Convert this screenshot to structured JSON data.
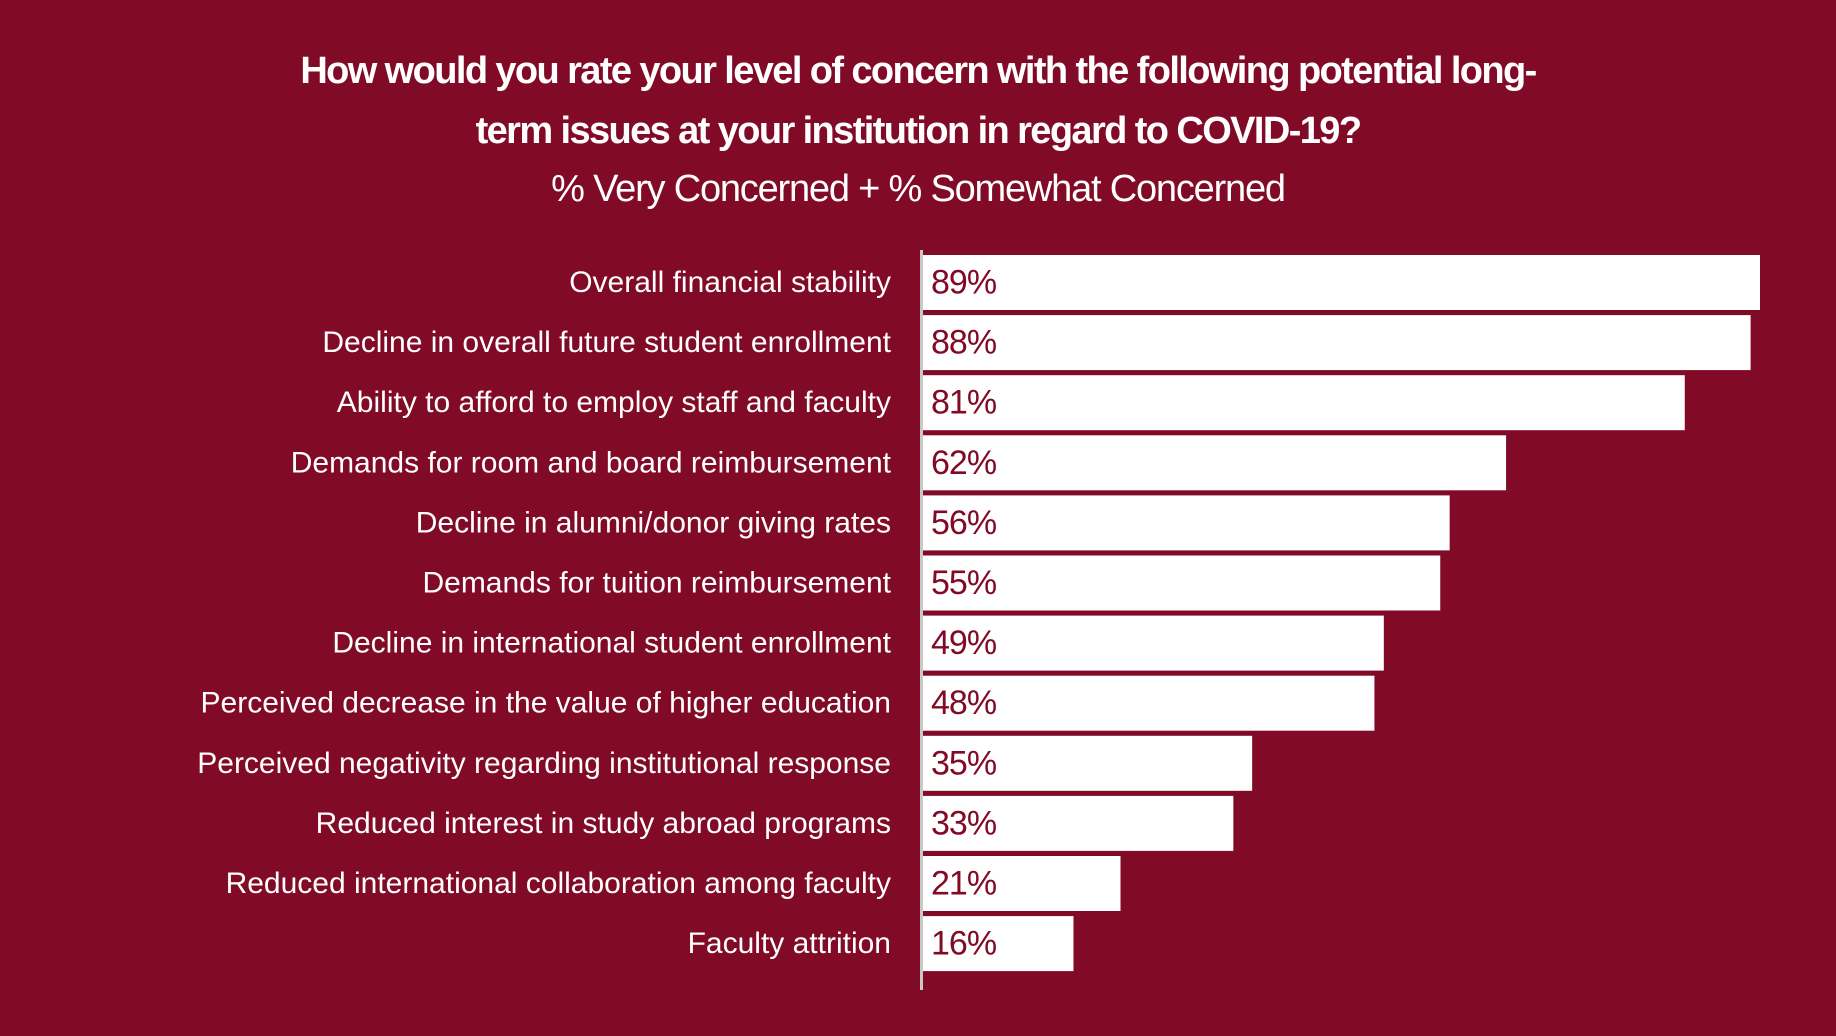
{
  "title_line_1": "How would you rate your level of concern with the following potential long-",
  "title_line_2": "term issues at your institution in regard to COVID-19?",
  "subtitle": "% Very Concerned + % Somewhat Concerned",
  "colors": {
    "background": "#810a26",
    "bar": "#ffffff",
    "value_text": "#810a26",
    "label_text": "#ffffff",
    "axis": "#c8c8c8"
  },
  "chart_data": {
    "type": "bar",
    "orientation": "horizontal",
    "title": "How would you rate your level of concern with the following potential long-term issues at your institution in regard to COVID-19?",
    "subtitle": "% Very Concerned + % Somewhat Concerned",
    "xlabel": "",
    "ylabel": "",
    "xlim": [
      0,
      89
    ],
    "grid": false,
    "legend": "none",
    "categories": [
      "Overall financial stability",
      "Decline in overall future student enrollment",
      "Ability to afford to employ staff and faculty",
      "Demands for room and board reimbursement",
      "Decline in alumni/donor giving rates",
      "Demands for tuition reimbursement",
      "Decline in international student enrollment",
      "Perceived decrease in the value of higher education",
      "Perceived negativity regarding institutional response",
      "Reduced interest in study abroad programs",
      "Reduced international collaboration among faculty",
      "Faculty attrition"
    ],
    "values": [
      89,
      88,
      81,
      62,
      56,
      55,
      49,
      48,
      35,
      33,
      21,
      16
    ],
    "value_labels": [
      "89%",
      "88%",
      "81%",
      "62%",
      "56%",
      "55%",
      "49%",
      "48%",
      "35%",
      "33%",
      "21%",
      "16%"
    ]
  }
}
